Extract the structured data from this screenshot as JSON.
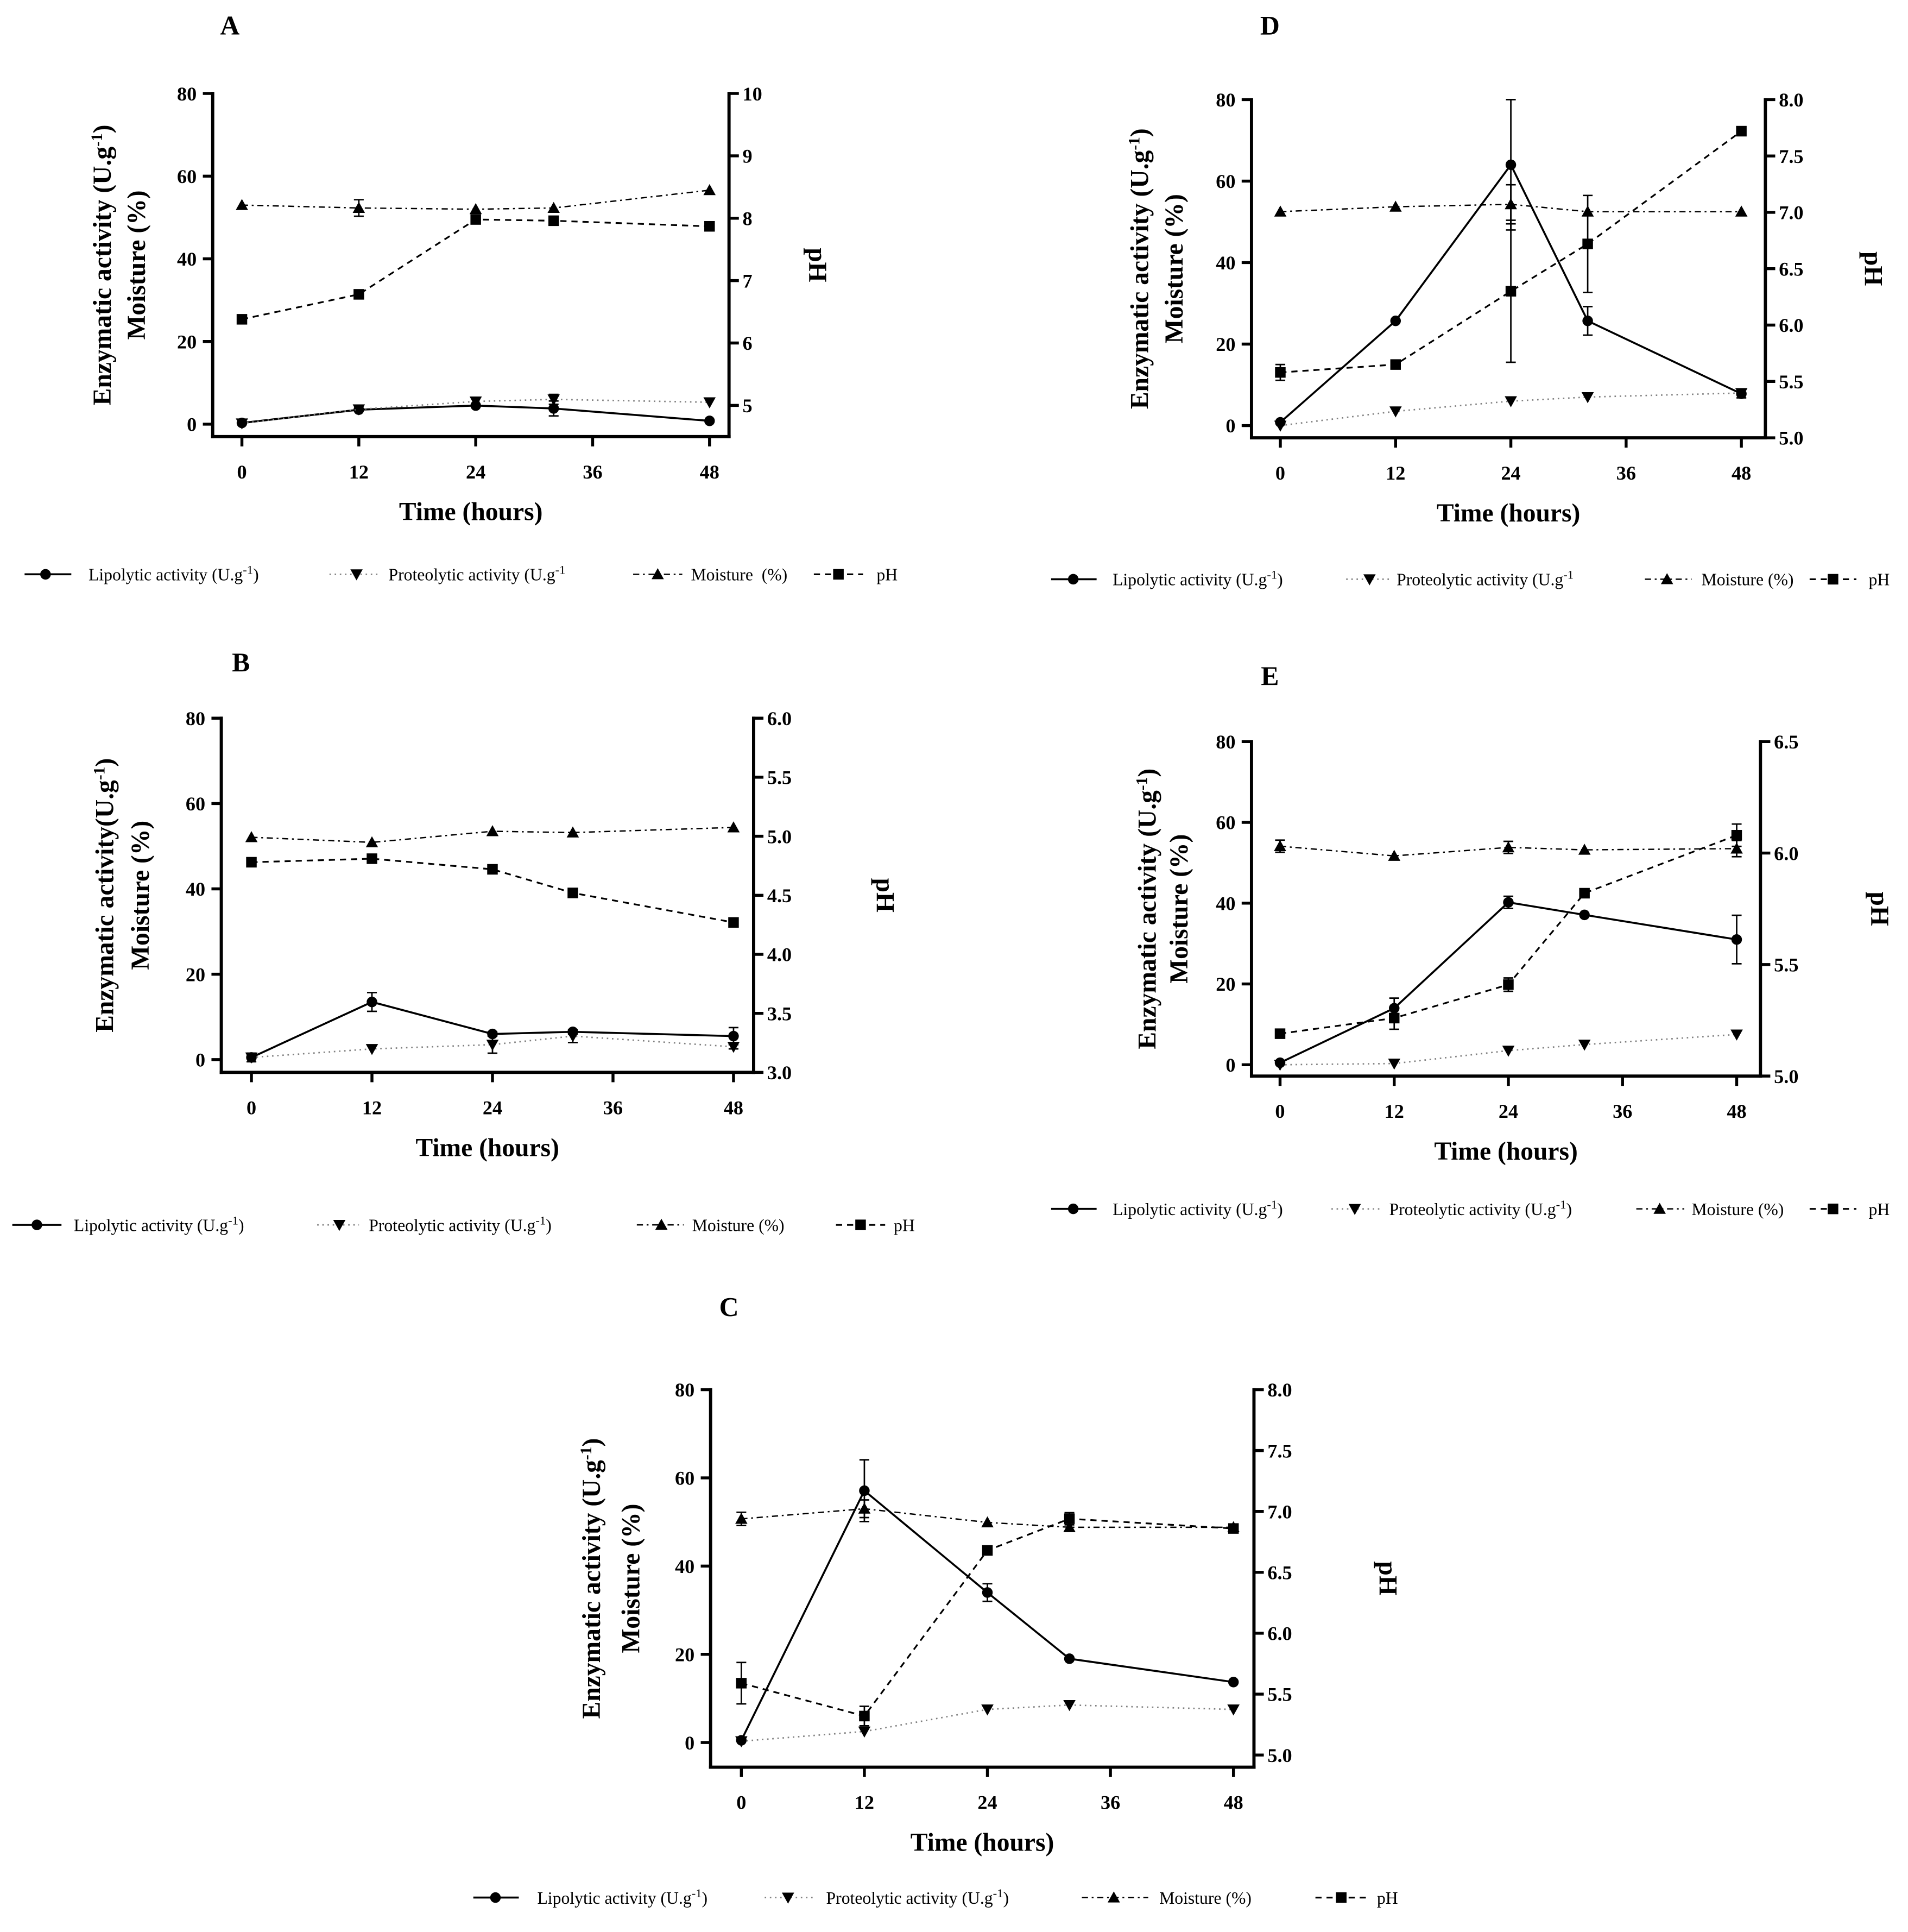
{
  "chart_data": [
    {
      "panel": "A",
      "type": "line",
      "x": [
        0,
        12,
        24,
        32,
        48
      ],
      "xticks": [
        "0",
        "12",
        "24",
        "36",
        "48"
      ],
      "xlim": [
        -3,
        50
      ],
      "xlabel": "Time (hours)",
      "ylabel": {
        "text": "Enzymatic activity (U.g",
        "sup": "-1",
        "tail": ")",
        "line2": "Moisture (%)"
      },
      "ylim": [
        -3,
        80
      ],
      "yticks": [
        "0",
        "20",
        "40",
        "60",
        "80"
      ],
      "y2label": "pH",
      "y2lim": [
        4.5,
        10
      ],
      "y2ticks": [
        "5",
        "6",
        "7",
        "8",
        "9",
        "10"
      ],
      "series": [
        {
          "name": "Lipolytic activity (U.g",
          "name_sup": "-1",
          "name_tail": ")",
          "on_y2": false,
          "values": [
            0.3,
            3.5,
            4.5,
            3.8,
            0.8
          ],
          "err": [
            0,
            0,
            0,
            1.8,
            0
          ]
        },
        {
          "name": "Proteolytic activity (U.g",
          "name_sup": "-1",
          "on_y2": false,
          "values": [
            0.2,
            3.6,
            5.5,
            6.0,
            5.3
          ],
          "err": [
            0,
            0,
            1,
            1.2,
            0
          ]
        },
        {
          "name": "Moisture  (%)",
          "on_y2": false,
          "values": [
            53.0,
            52.3,
            52.0,
            52.3,
            56.6
          ],
          "err": [
            0,
            2,
            0,
            0,
            0
          ]
        },
        {
          "name": "pH",
          "on_y2": true,
          "values": [
            6.38,
            6.78,
            7.98,
            7.96,
            7.87
          ],
          "err": [
            0,
            0,
            0,
            0,
            0
          ]
        }
      ]
    },
    {
      "panel": "B",
      "type": "line",
      "x": [
        0,
        12,
        24,
        32,
        48
      ],
      "xticks": [
        "0",
        "12",
        "24",
        "36",
        "48"
      ],
      "xlim": [
        -3,
        50
      ],
      "xlabel": "Time (hours)",
      "ylabel": {
        "text": "Enzymatic activity(U.g",
        "sup": "-1",
        "tail": ")",
        "line2": "Moisture (%)"
      },
      "ylim": [
        -3,
        80
      ],
      "yticks": [
        "0",
        "20",
        "40",
        "60",
        "80"
      ],
      "y2label": "pH",
      "y2lim": [
        3.0,
        6.0
      ],
      "y2ticks": [
        "3.0",
        "3.5",
        "4.0",
        "4.5",
        "5.0",
        "5.5",
        "6.0"
      ],
      "series": [
        {
          "name": "Lipolytic activity (U.g",
          "name_sup": "-1",
          "name_tail": ")",
          "on_y2": false,
          "values": [
            0.5,
            13.5,
            6.0,
            6.5,
            5.5
          ],
          "err": [
            1,
            2.2,
            0.5,
            0.5,
            2
          ]
        },
        {
          "name": "Proteolytic activity (U.g",
          "name_sup": "-1",
          "name_tail": ")",
          "on_y2": false,
          "values": [
            0.5,
            2.5,
            3.5,
            5.5,
            3.0
          ],
          "err": [
            0,
            0,
            2,
            1.5,
            0.5
          ]
        },
        {
          "name": "Moisture (%)",
          "on_y2": false,
          "values": [
            52.1,
            50.9,
            53.5,
            53.2,
            54.4
          ],
          "err": [
            0,
            0,
            0,
            0,
            0
          ]
        },
        {
          "name": "pH",
          "on_y2": true,
          "values": [
            4.78,
            4.81,
            4.72,
            4.52,
            4.27
          ],
          "err": [
            0,
            0,
            0,
            0,
            0
          ]
        }
      ]
    },
    {
      "panel": "C",
      "type": "line",
      "x": [
        0,
        12,
        24,
        32,
        48
      ],
      "xticks": [
        "0",
        "12",
        "24",
        "36",
        "48"
      ],
      "xlim": [
        -3,
        50
      ],
      "xlabel": "Time (hours)",
      "ylabel": {
        "text": "Enzymatic activity (U.g",
        "sup": "-1",
        "tail": ")",
        "line2": "Moisture (%)"
      },
      "ylim": [
        -5.6,
        80
      ],
      "yticks": [
        "0",
        "20",
        "40",
        "60",
        "80"
      ],
      "y2label": "pH",
      "y2lim": [
        4.9,
        8.0
      ],
      "y2ticks": [
        "5.0",
        "5.5",
        "6.0",
        "6.5",
        "7.0",
        "7.5",
        "8.0"
      ],
      "series": [
        {
          "name": "Lipolytic activity (U.g",
          "name_sup": "-1",
          "name_tail": ")",
          "on_y2": false,
          "values": [
            0.5,
            57.1,
            34.0,
            19.0,
            13.7
          ],
          "err": [
            0,
            7,
            2,
            0,
            0
          ]
        },
        {
          "name": "Proteolytic activity (U.g",
          "name_sup": "-1",
          "name_tail": ")",
          "on_y2": false,
          "values": [
            0.3,
            2.5,
            7.5,
            8.5,
            7.5
          ],
          "err": [
            0,
            0,
            0,
            0,
            0
          ]
        },
        {
          "name": "Moisture (%)",
          "on_y2": false,
          "values": [
            50.7,
            53.0,
            49.9,
            48.8,
            48.8
          ],
          "err": [
            1.5,
            2,
            0,
            0,
            0
          ]
        },
        {
          "name": "pH",
          "on_y2": true,
          "values": [
            5.59,
            5.32,
            6.68,
            6.94,
            6.86
          ],
          "err": [
            0.17,
            0.08,
            0,
            0.05,
            0.03
          ]
        }
      ]
    },
    {
      "panel": "D",
      "type": "line",
      "x": [
        0,
        12,
        24,
        32,
        48
      ],
      "xticks": [
        "0",
        "12",
        "24",
        "36",
        "48"
      ],
      "xlim": [
        -3,
        50.5
      ],
      "xlabel": "Time (hours)",
      "ylabel": {
        "text": "Enzymatic activity (U.g",
        "sup": "-1",
        "tail": ")",
        "line2": "Moisture (%)"
      },
      "ylim": [
        -3,
        80
      ],
      "yticks": [
        "0",
        "20",
        "40",
        "60",
        "80"
      ],
      "y2label": "pH",
      "y2lim": [
        5.0,
        8.0
      ],
      "y2ticks": [
        "5.0",
        "5.5",
        "6.0",
        "6.5",
        "7.0",
        "7.5",
        "8.0"
      ],
      "series": [
        {
          "name": "Lipolytic activity (U.g",
          "name_sup": "-1",
          "name_tail": ")",
          "on_y2": false,
          "values": [
            0.8,
            25.7,
            64.0,
            25.7,
            7.8
          ],
          "err": [
            0,
            0,
            16,
            3.5,
            1
          ]
        },
        {
          "name": "Proteolytic activity (U.g",
          "name_sup": "-1",
          "on_y2": false,
          "values": [
            0,
            3.5,
            6.0,
            7.0,
            8.0
          ],
          "err": [
            0,
            0,
            0,
            0,
            0
          ]
        },
        {
          "name": "Moisture (%)",
          "on_y2": false,
          "values": [
            52.5,
            53.7,
            54.3,
            52.5,
            52.5
          ],
          "err": [
            0,
            0,
            4.8,
            0,
            0
          ]
        },
        {
          "name": "pH",
          "on_y2": true,
          "values": [
            5.58,
            5.65,
            6.3,
            6.72,
            7.72
          ],
          "err": [
            0.07,
            0,
            0.63,
            0.43,
            0.03
          ]
        }
      ]
    },
    {
      "panel": "E",
      "type": "line",
      "x": [
        0,
        12,
        24,
        32,
        48
      ],
      "xticks": [
        "0",
        "12",
        "24",
        "36",
        "48"
      ],
      "xlim": [
        -3,
        50.5
      ],
      "xlabel": "Time (hours)",
      "ylabel": {
        "text": "Enzymatic activity (U.g",
        "sup": "-1",
        "tail": ")",
        "line2": "Moisture (%)"
      },
      "ylim": [
        -2.8,
        80
      ],
      "yticks": [
        "0",
        "20",
        "40",
        "60",
        "80"
      ],
      "y2label": "pH",
      "y2lim": [
        5.0,
        6.5
      ],
      "y2ticks": [
        "5.0",
        "5.5",
        "6.0",
        "6.5"
      ],
      "series": [
        {
          "name": "Lipolytic activity (U.g",
          "name_sup": "-1",
          "name_tail": ")",
          "on_y2": false,
          "values": [
            0.5,
            14.0,
            40.2,
            37.1,
            31.0
          ],
          "err": [
            0,
            2.5,
            1.5,
            0,
            6
          ]
        },
        {
          "name": "Proteolytic activity (U.g",
          "name_sup": "-1",
          "name_tail": ")",
          "on_y2": false,
          "values": [
            0,
            0.3,
            3.5,
            5.0,
            7.5
          ],
          "err": [
            0,
            0,
            0,
            0,
            0
          ]
        },
        {
          "name": "Moisture (%)",
          "on_y2": false,
          "values": [
            54.1,
            51.7,
            53.8,
            53.2,
            53.5
          ],
          "err": [
            1.5,
            0,
            1.5,
            0,
            2
          ]
        },
        {
          "name": "pH",
          "on_y2": true,
          "values": [
            5.19,
            5.26,
            5.41,
            5.82,
            6.08
          ],
          "err": [
            0,
            0.05,
            0.03,
            0,
            0.05
          ]
        }
      ]
    }
  ]
}
